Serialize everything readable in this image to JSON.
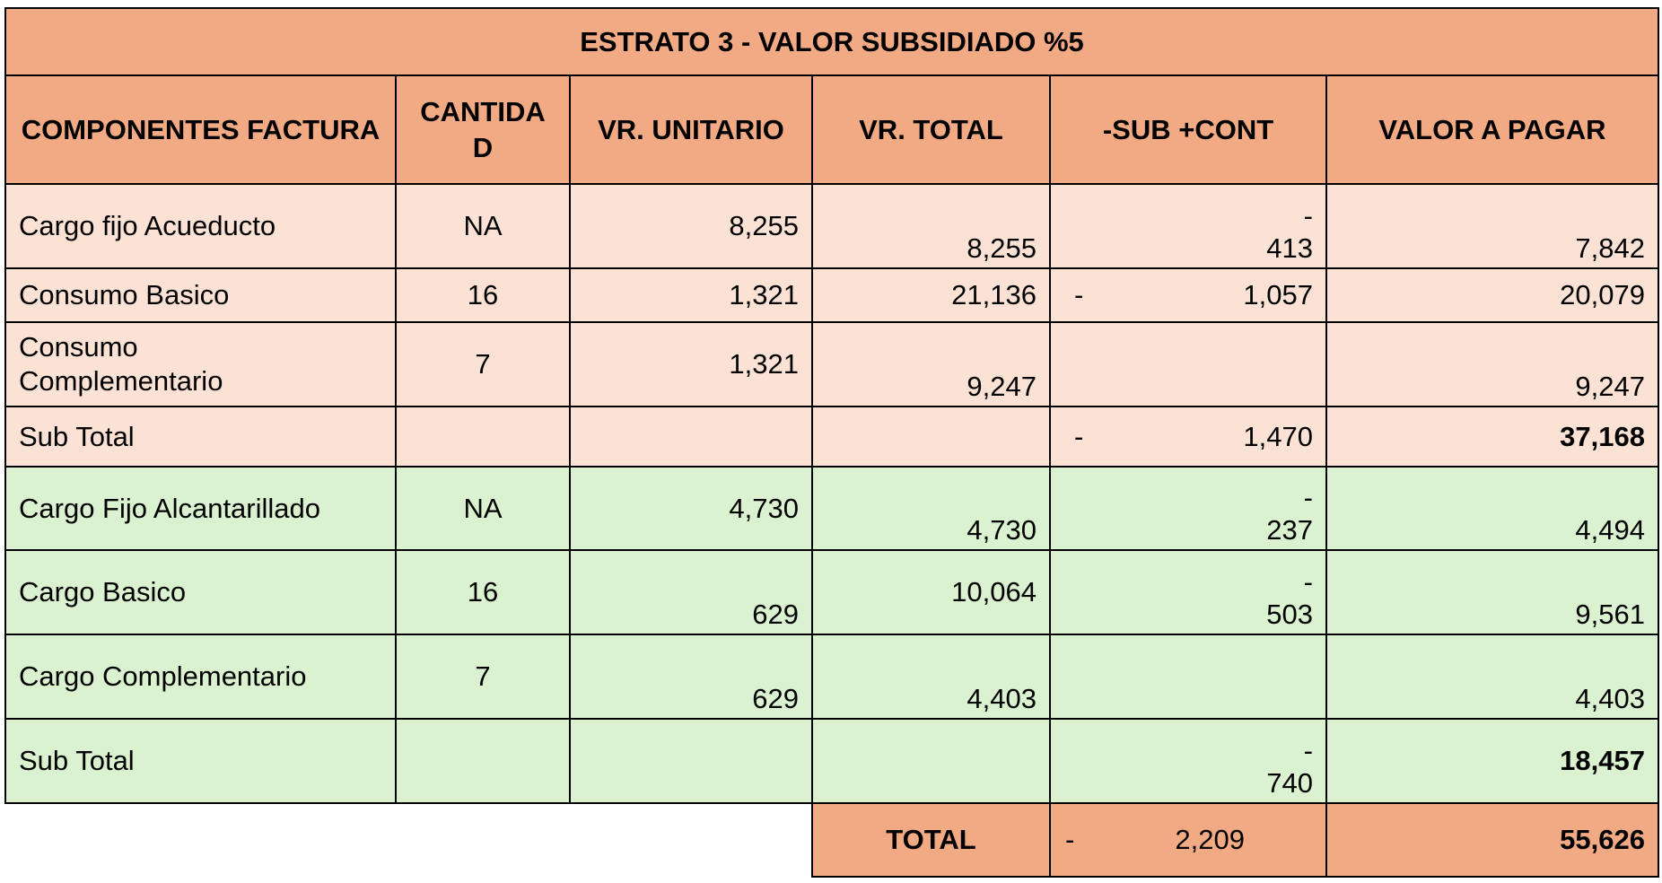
{
  "title": "ESTRATO 3 - VALOR SUBSIDIADO %5",
  "headers": {
    "componentes": "COMPONENTES FACTURA",
    "cantidad_line1": "CANTIDA",
    "cantidad_line2": "D",
    "vr_unitario": "VR. UNITARIO",
    "vr_total": "VR. TOTAL",
    "sub_cont": "-SUB +CONT",
    "valor_a_pagar": "VALOR A PAGAR"
  },
  "rows": [
    {
      "componente": "Cargo fijo Acueducto",
      "cantidad": "NA",
      "vr_unitario": "8,255",
      "vr_total": "8,255",
      "sub_dash": "-",
      "sub_value": "413",
      "valor_a_pagar": "7,842"
    },
    {
      "componente": "Consumo Basico",
      "cantidad": "16",
      "vr_unitario": "1,321",
      "vr_total": "21,136",
      "sub_dash": "-",
      "sub_value": "1,057",
      "valor_a_pagar": "20,079"
    },
    {
      "componente_line1": "Consumo",
      "componente_line2": "Complementario",
      "cantidad": "7",
      "vr_unitario": "1,321",
      "vr_total": "9,247",
      "valor_a_pagar": "9,247"
    },
    {
      "componente": "Sub Total",
      "sub_dash": "-",
      "sub_value": "1,470",
      "valor_a_pagar": "37,168"
    },
    {
      "componente": "Cargo Fijo Alcantarillado",
      "cantidad": "NA",
      "vr_unitario": "4,730",
      "vr_total": "4,730",
      "sub_dash": "-",
      "sub_value": "237",
      "valor_a_pagar": "4,494"
    },
    {
      "componente": "Cargo Basico",
      "cantidad": "16",
      "vr_unitario": "629",
      "vr_total": "10,064",
      "sub_dash": "-",
      "sub_value": "503",
      "valor_a_pagar": "9,561"
    },
    {
      "componente": "Cargo Complementario",
      "cantidad": "7",
      "vr_unitario": "629",
      "vr_total": "4,403",
      "valor_a_pagar": "4,403"
    },
    {
      "componente": "Sub Total",
      "sub_dash": "-",
      "sub_value": "740",
      "valor_a_pagar": "18,457"
    }
  ],
  "total": {
    "label": "TOTAL",
    "sub_dash": "-",
    "sub_value": "2,209",
    "valor_a_pagar": "55,626"
  },
  "colors": {
    "header": "#f1aa83",
    "pink_section": "#fbe2d5",
    "green_section": "#daf2d0"
  }
}
